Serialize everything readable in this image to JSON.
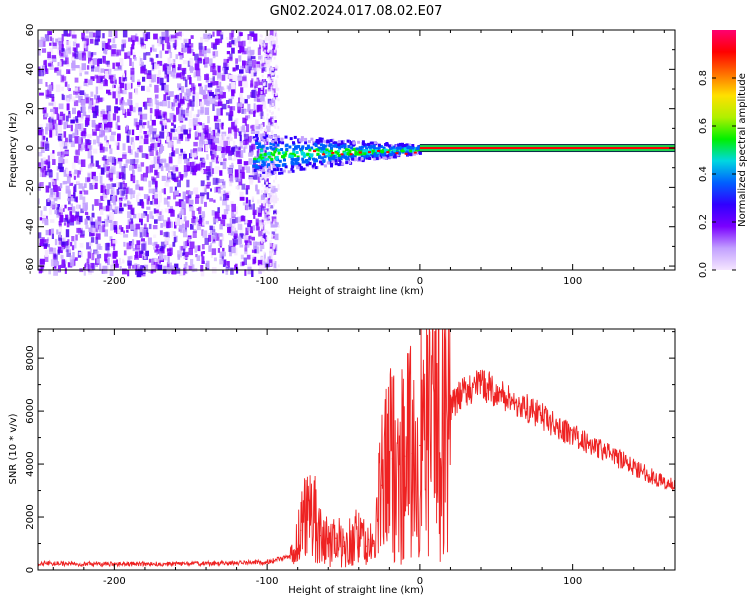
{
  "title": "GN02.2024.017.08.02.E07",
  "colors": {
    "snr_line": "#ee2222",
    "trace_core": "#ff0000",
    "trace_band": "#20d050",
    "noise_violet": "#6a00ff",
    "colorbar": [
      "#f5e6ff",
      "#c2a0ff",
      "#7a00ff",
      "#3000ff",
      "#0060ff",
      "#00d8e0",
      "#00f000",
      "#b0f000",
      "#ffe000",
      "#ff7000",
      "#ff0000",
      "#ff0070"
    ]
  },
  "chart_data": [
    {
      "type": "heatmap",
      "name": "spectrogram",
      "xlabel": "Height of straight line (km)",
      "ylabel": "Frequency (Hz)",
      "xlim": [
        -250,
        167
      ],
      "ylim": [
        -62,
        60
      ],
      "x_ticks": [
        -200,
        -100,
        0,
        100
      ],
      "y_ticks": [
        -60,
        -40,
        -20,
        0,
        20,
        40,
        60
      ],
      "colorbar": {
        "label": "Normalized spectral amplitude",
        "range": [
          0,
          1
        ],
        "ticks": [
          "0.0",
          "0.2",
          "0.4",
          "0.6",
          "0.8"
        ]
      },
      "regions": [
        {
          "x": [
            -250,
            -100
          ],
          "description_level": "low-amplitude broadband noise across all frequencies"
        },
        {
          "x": [
            -110,
            0
          ],
          "frequency_center": -3,
          "amplitude": 0.45
        },
        {
          "x": [
            0,
            167
          ],
          "frequency_center": 0,
          "amplitude": 1.0
        }
      ]
    },
    {
      "type": "line",
      "name": "snr",
      "xlabel": "Height of straight line (km)",
      "ylabel": "SNR (10 * v/v)",
      "xlim": [
        -250,
        167
      ],
      "ylim": [
        0,
        9100
      ],
      "x_ticks": [
        -200,
        -100,
        0,
        100
      ],
      "y_ticks": [
        0,
        2000,
        4000,
        6000,
        8000
      ],
      "series": [
        {
          "x": [
            -250,
            -200,
            -150,
            -100,
            -85,
            -78,
            -72,
            -65,
            -60,
            -55,
            -50,
            -45,
            -40,
            -35,
            -30,
            -25,
            -22,
            -18,
            -14,
            -10,
            -5,
            0,
            5,
            10,
            15,
            20,
            25,
            30,
            35,
            40,
            45,
            50,
            60,
            70,
            80,
            90,
            100,
            110,
            120,
            130,
            140,
            150,
            160,
            167
          ],
          "y": [
            250,
            220,
            230,
            300,
            500,
            1500,
            2600,
            1300,
            1000,
            1200,
            900,
            1100,
            1300,
            900,
            1000,
            3200,
            3800,
            4200,
            3800,
            4300,
            4400,
            4700,
            5100,
            5800,
            5900,
            6100,
            6500,
            6800,
            6900,
            7000,
            6900,
            6700,
            6400,
            6100,
            5800,
            5400,
            5100,
            4800,
            4500,
            4200,
            3900,
            3600,
            3300,
            3200
          ]
        }
      ]
    }
  ]
}
